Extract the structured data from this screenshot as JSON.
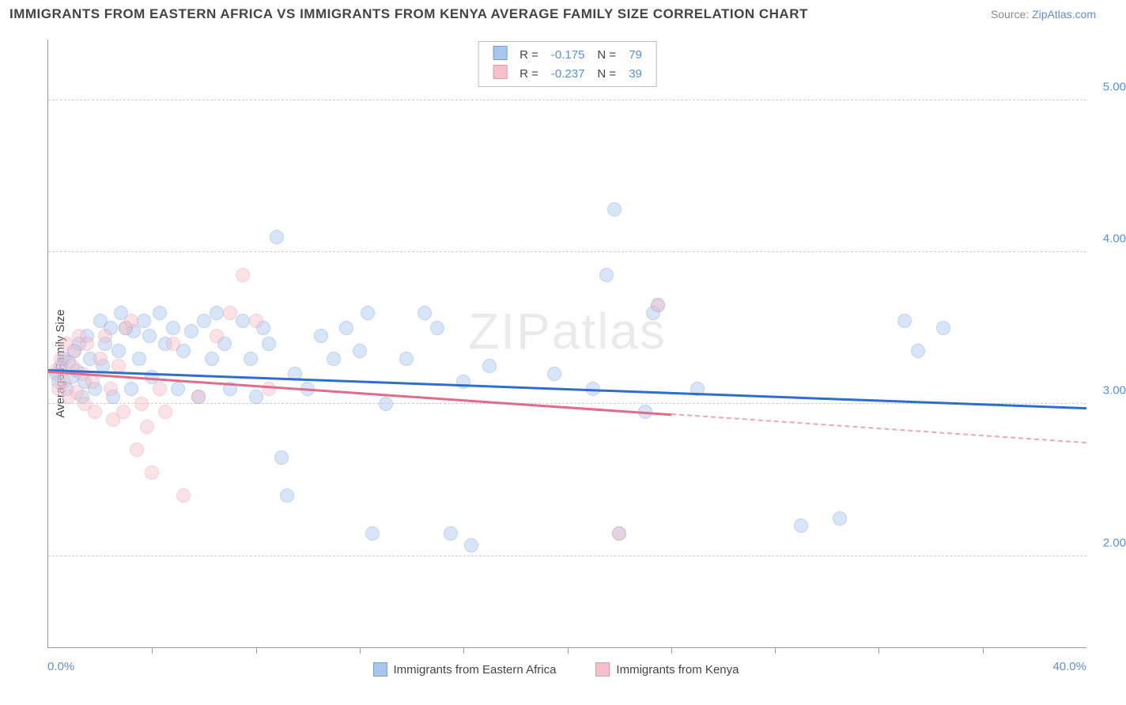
{
  "title": "IMMIGRANTS FROM EASTERN AFRICA VS IMMIGRANTS FROM KENYA AVERAGE FAMILY SIZE CORRELATION CHART",
  "source_prefix": "Source: ",
  "source_link": "ZipAtlas.com",
  "y_axis_label": "Average Family Size",
  "watermark": "ZIPatlas",
  "chart": {
    "type": "scatter",
    "background_color": "#ffffff",
    "grid_color": "#cccccc",
    "axis_color": "#999999",
    "xlim": [
      0,
      40
    ],
    "ylim": [
      1.4,
      5.4
    ],
    "x_tick_step_pct": 10,
    "y_ticks": [
      2.0,
      3.0,
      4.0,
      5.0
    ],
    "y_tick_labels": [
      "2.00",
      "3.00",
      "4.00",
      "5.00"
    ],
    "x_min_label": "0.0%",
    "x_max_label": "40.0%",
    "tick_label_color": "#5b8fd6",
    "marker_radius": 9,
    "marker_opacity": 0.45,
    "trend_line_width": 3
  },
  "series": [
    {
      "key": "eastern_africa",
      "label": "Immigrants from Eastern Africa",
      "color_fill": "#a9c7ec",
      "color_stroke": "#6ea0de",
      "trend_color": "#2d6fd0",
      "R": "-0.175",
      "N": "79",
      "trend": {
        "x1": 0,
        "y1": 3.23,
        "x2": 40,
        "y2": 2.98,
        "solid_to_x": 40
      },
      "points": [
        [
          0.3,
          3.2
        ],
        [
          0.4,
          3.15
        ],
        [
          0.5,
          3.25
        ],
        [
          0.6,
          3.3
        ],
        [
          0.7,
          3.1
        ],
        [
          0.8,
          3.28
        ],
        [
          0.9,
          3.18
        ],
        [
          1.0,
          3.35
        ],
        [
          1.1,
          3.22
        ],
        [
          1.2,
          3.4
        ],
        [
          1.3,
          3.05
        ],
        [
          1.4,
          3.15
        ],
        [
          1.5,
          3.45
        ],
        [
          1.6,
          3.3
        ],
        [
          1.8,
          3.1
        ],
        [
          2.0,
          3.55
        ],
        [
          2.1,
          3.25
        ],
        [
          2.2,
          3.4
        ],
        [
          2.4,
          3.5
        ],
        [
          2.5,
          3.05
        ],
        [
          2.7,
          3.35
        ],
        [
          2.8,
          3.6
        ],
        [
          3.0,
          3.5
        ],
        [
          3.2,
          3.1
        ],
        [
          3.3,
          3.48
        ],
        [
          3.5,
          3.3
        ],
        [
          3.7,
          3.55
        ],
        [
          3.9,
          3.45
        ],
        [
          4.0,
          3.18
        ],
        [
          4.3,
          3.6
        ],
        [
          4.5,
          3.4
        ],
        [
          4.8,
          3.5
        ],
        [
          5.0,
          3.1
        ],
        [
          5.2,
          3.35
        ],
        [
          5.5,
          3.48
        ],
        [
          5.8,
          3.05
        ],
        [
          6.0,
          3.55
        ],
        [
          6.3,
          3.3
        ],
        [
          6.5,
          3.6
        ],
        [
          6.8,
          3.4
        ],
        [
          7.0,
          3.1
        ],
        [
          7.5,
          3.55
        ],
        [
          7.8,
          3.3
        ],
        [
          8.0,
          3.05
        ],
        [
          8.3,
          3.5
        ],
        [
          8.5,
          3.4
        ],
        [
          8.8,
          4.1
        ],
        [
          9.0,
          2.65
        ],
        [
          9.2,
          2.4
        ],
        [
          9.5,
          3.2
        ],
        [
          10.0,
          3.1
        ],
        [
          10.5,
          3.45
        ],
        [
          11.0,
          3.3
        ],
        [
          11.5,
          3.5
        ],
        [
          12.0,
          3.35
        ],
        [
          12.3,
          3.6
        ],
        [
          12.5,
          2.15
        ],
        [
          13.0,
          3.0
        ],
        [
          13.8,
          3.3
        ],
        [
          14.5,
          3.6
        ],
        [
          15.0,
          3.5
        ],
        [
          15.5,
          2.15
        ],
        [
          16.0,
          3.15
        ],
        [
          16.3,
          2.07
        ],
        [
          17.0,
          3.25
        ],
        [
          19.5,
          3.2
        ],
        [
          21.0,
          3.1
        ],
        [
          21.5,
          3.85
        ],
        [
          21.8,
          4.28
        ],
        [
          22.0,
          2.15
        ],
        [
          23.0,
          2.95
        ],
        [
          23.5,
          3.65
        ],
        [
          25.0,
          3.1
        ],
        [
          29.0,
          2.2
        ],
        [
          30.5,
          2.25
        ],
        [
          33.5,
          3.35
        ],
        [
          34.5,
          3.5
        ],
        [
          33.0,
          3.55
        ],
        [
          23.3,
          3.6
        ]
      ]
    },
    {
      "key": "kenya",
      "label": "Immigrants from Kenya",
      "color_fill": "#f4c0ca",
      "color_stroke": "#e997a8",
      "trend_color": "#e26a8a",
      "R": "-0.237",
      "N": "39",
      "trend": {
        "x1": 0,
        "y1": 3.22,
        "x2": 40,
        "y2": 2.75,
        "solid_to_x": 24
      },
      "points": [
        [
          0.3,
          3.22
        ],
        [
          0.4,
          3.1
        ],
        [
          0.5,
          3.3
        ],
        [
          0.6,
          3.15
        ],
        [
          0.7,
          3.4
        ],
        [
          0.8,
          3.05
        ],
        [
          0.9,
          3.25
        ],
        [
          1.0,
          3.35
        ],
        [
          1.1,
          3.08
        ],
        [
          1.2,
          3.45
        ],
        [
          1.3,
          3.2
        ],
        [
          1.4,
          3.0
        ],
        [
          1.5,
          3.4
        ],
        [
          1.7,
          3.15
        ],
        [
          1.8,
          2.95
        ],
        [
          2.0,
          3.3
        ],
        [
          2.2,
          3.45
        ],
        [
          2.4,
          3.1
        ],
        [
          2.5,
          2.9
        ],
        [
          2.7,
          3.25
        ],
        [
          2.9,
          2.95
        ],
        [
          3.0,
          3.5
        ],
        [
          3.2,
          3.55
        ],
        [
          3.4,
          2.7
        ],
        [
          3.6,
          3.0
        ],
        [
          3.8,
          2.85
        ],
        [
          4.0,
          2.55
        ],
        [
          4.3,
          3.1
        ],
        [
          4.5,
          2.95
        ],
        [
          4.8,
          3.4
        ],
        [
          5.2,
          2.4
        ],
        [
          5.8,
          3.05
        ],
        [
          6.5,
          3.45
        ],
        [
          7.0,
          3.6
        ],
        [
          7.5,
          3.85
        ],
        [
          8.0,
          3.55
        ],
        [
          8.5,
          3.1
        ],
        [
          22.0,
          2.15
        ],
        [
          23.5,
          3.65
        ]
      ]
    }
  ],
  "top_legend_labels": {
    "R": "R  =",
    "N": "N  ="
  }
}
